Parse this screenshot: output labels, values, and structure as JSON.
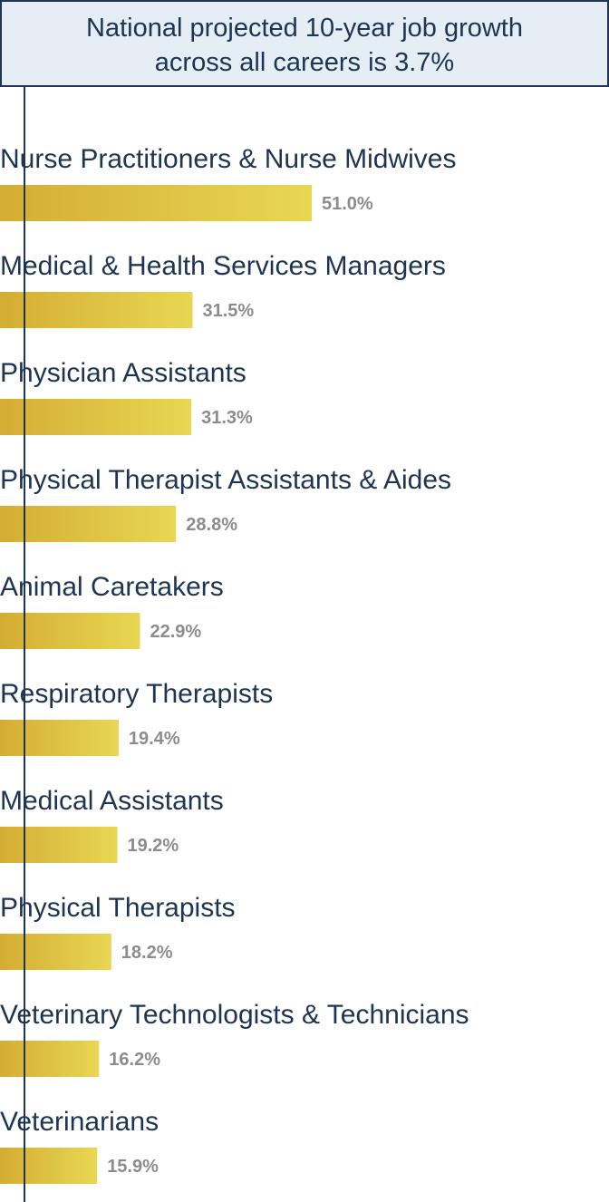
{
  "chart_data": {
    "type": "bar",
    "orientation": "horizontal",
    "callout": {
      "line1": "National projected 10-year job growth",
      "line2": "across all careers is 3.7%"
    },
    "reference_value": 3.7,
    "categories": [
      "Nurse Practitioners & Nurse Midwives",
      "Medical & Health Services Managers",
      "Physician Assistants",
      "Physical Therapist Assistants & Aides",
      "Animal Caretakers",
      "Respiratory Therapists",
      "Medical Assistants",
      "Physical Therapists",
      "Veterinary Technologists & Technicians",
      "Veterinarians"
    ],
    "values": [
      51.0,
      31.5,
      31.3,
      28.8,
      22.9,
      19.4,
      19.2,
      18.2,
      16.2,
      15.9
    ],
    "value_labels": [
      "51.0%",
      "31.5%",
      "31.3%",
      "28.8%",
      "22.9%",
      "19.4%",
      "19.2%",
      "18.2%",
      "16.2%",
      "15.9%"
    ],
    "unit": "%",
    "xlim": [
      0,
      51.0
    ],
    "colors": {
      "bar_start": "#d4ad33",
      "bar_end": "#e8d753",
      "label": "#1d3452",
      "value_label": "#8c8c8c",
      "callout_fill": "#e5eef4",
      "callout_border": "#1d3452"
    }
  }
}
